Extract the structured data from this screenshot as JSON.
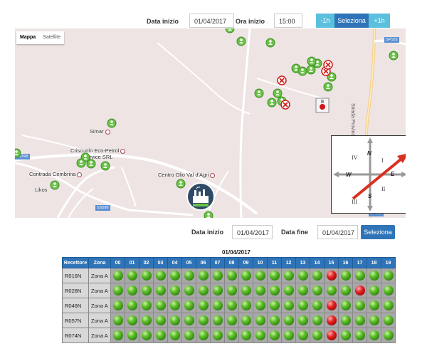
{
  "topbar": {
    "date_label": "Data inizio",
    "date_value": "01/04/2017",
    "time_label": "Ora inizio",
    "time_value": "15:00",
    "minus_label": "-1h",
    "select_label": "Seleziona",
    "plus_label": "+1h"
  },
  "map": {
    "type_map": "Mappa",
    "type_satellite": "Satellite",
    "places": {
      "simar": "Simar",
      "criscuolo_1": "Criscuolo Eco-Petrol",
      "criscuolo_2": "Service SRL",
      "cembrina": "Contrada Cembrina",
      "likos": "Likos",
      "centro_olio": "Centro Olio Val d'Agri",
      "strada": "Strada Provinciale 103"
    },
    "roads": {
      "ss598_a": "SS598",
      "ss598_b": "SS598",
      "sp103_a": "SP103",
      "sp103_b": "SP103"
    },
    "compass": {
      "n": "N",
      "s": "S",
      "e": "E",
      "w": "W",
      "q1": "I",
      "q2": "II",
      "q3": "III",
      "q4": "IV"
    }
  },
  "filter": {
    "start_label": "Data inizio",
    "start_value": "01/04/2017",
    "end_label": "Data fine",
    "end_value": "01/04/2017",
    "select_label": "Seleziona"
  },
  "table": {
    "title": "01/04/2017",
    "col_receptor": "Recettore",
    "col_zone": "Zona",
    "hours": [
      "00",
      "01",
      "02",
      "03",
      "04",
      "05",
      "06",
      "07",
      "08",
      "09",
      "10",
      "11",
      "12",
      "13",
      "14",
      "15",
      "16",
      "17",
      "18",
      "19"
    ],
    "rows": [
      {
        "id": "R016N",
        "zone": "Zona A",
        "alarms": [
          15
        ]
      },
      {
        "id": "R028N",
        "zone": "Zona A",
        "alarms": [
          17
        ]
      },
      {
        "id": "R046N",
        "zone": "Zona A",
        "alarms": [
          15
        ]
      },
      {
        "id": "R057N",
        "zone": "Zona A",
        "alarms": [
          15
        ]
      },
      {
        "id": "R074N",
        "zone": "Zona A",
        "alarms": [
          15
        ]
      }
    ]
  },
  "colors": {
    "primary_button": "#2f74b8",
    "light_button": "#5bc0de",
    "map_background": "#eee4e4",
    "ok_status": "#4caf22",
    "alarm_status": "#d01818",
    "wind_arrow": "#d93020"
  },
  "icons": {
    "receptor": "green-person-pin-icon",
    "alarm_receptor": "red-alarm-pin-icon",
    "plant": "factory-icon",
    "wind": "wind-direction-arrow-icon"
  }
}
